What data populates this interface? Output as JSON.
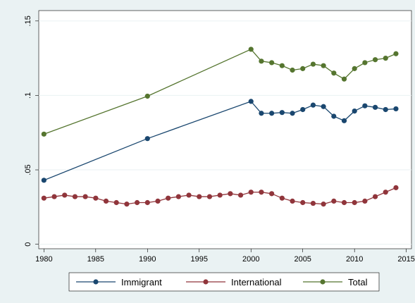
{
  "chart_data": {
    "type": "line",
    "xlim": [
      1979.5,
      2015.5
    ],
    "xticks": [
      1980,
      1985,
      1990,
      1995,
      2000,
      2005,
      2010,
      2015
    ],
    "ylim": [
      -0.003,
      0.157
    ],
    "yticks": [
      0,
      {
        "value": 0.05,
        "label": ".05"
      },
      {
        "value": 0.1,
        "label": ".1"
      },
      {
        "value": 0.15,
        "label": ".15"
      }
    ],
    "grid": true,
    "legend": "bottom",
    "series": [
      {
        "name": "Immigrant",
        "color": "#1a476f",
        "x": [
          1980,
          1990,
          2000,
          2001,
          2002,
          2003,
          2004,
          2005,
          2006,
          2007,
          2008,
          2009,
          2010,
          2011,
          2012,
          2013,
          2014
        ],
        "values": [
          0.043,
          0.071,
          0.096,
          0.088,
          0.088,
          0.0885,
          0.088,
          0.0905,
          0.0935,
          0.0925,
          0.086,
          0.083,
          0.0895,
          0.093,
          0.092,
          0.0905,
          0.091
        ]
      },
      {
        "name": "International",
        "color": "#90353b",
        "x": [
          1980,
          1981,
          1982,
          1983,
          1984,
          1985,
          1986,
          1987,
          1988,
          1989,
          1990,
          1991,
          1992,
          1993,
          1994,
          1995,
          1996,
          1997,
          1998,
          1999,
          2000,
          2001,
          2002,
          2003,
          2004,
          2005,
          2006,
          2007,
          2008,
          2009,
          2010,
          2011,
          2012,
          2013,
          2014
        ],
        "values": [
          0.031,
          0.032,
          0.033,
          0.032,
          0.032,
          0.031,
          0.029,
          0.028,
          0.027,
          0.028,
          0.028,
          0.029,
          0.031,
          0.032,
          0.033,
          0.032,
          0.032,
          0.033,
          0.034,
          0.033,
          0.035,
          0.035,
          0.034,
          0.031,
          0.029,
          0.028,
          0.0275,
          0.027,
          0.029,
          0.028,
          0.028,
          0.029,
          0.032,
          0.035,
          0.038
        ]
      },
      {
        "name": "Total",
        "color": "#55752f",
        "x": [
          1980,
          1990,
          2000,
          2001,
          2002,
          2003,
          2004,
          2005,
          2006,
          2007,
          2008,
          2009,
          2010,
          2011,
          2012,
          2013,
          2014
        ],
        "values": [
          0.074,
          0.0995,
          0.131,
          0.123,
          0.122,
          0.12,
          0.117,
          0.118,
          0.121,
          0.12,
          0.115,
          0.111,
          0.118,
          0.122,
          0.124,
          0.125,
          0.128
        ]
      }
    ]
  }
}
